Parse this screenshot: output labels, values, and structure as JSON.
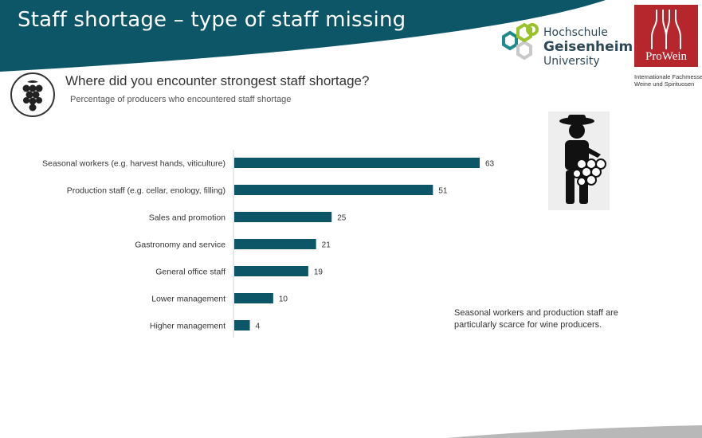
{
  "header": {
    "title": "Staff shortage – type of staff missing",
    "band_color": "#0d5667"
  },
  "logos": {
    "hochschule": {
      "line1": "Hochschule",
      "line2": "Geisenheim",
      "line3": "University"
    },
    "prowein": {
      "name": "ProWein",
      "sub_line1": "Internationale Fachmesse",
      "sub_line2": "Weine und Spirituosen",
      "color": "#b5272d"
    }
  },
  "question": "Where did you encounter strongest staff shortage?",
  "icons": {
    "grape": "grape-icon",
    "worker": "grape-picker-icon"
  },
  "chart_data": {
    "type": "bar",
    "orientation": "horizontal",
    "subtitle": "Percentage of producers who encountered staff shortage",
    "categories": [
      "Seasonal workers (e.g. harvest hands, viticulture)",
      "Production staff (e.g. cellar, enology, filling)",
      "Sales and promotion",
      "Gastronomy and service",
      "General office staff",
      "Lower management",
      "Higher management"
    ],
    "values": [
      63,
      51,
      25,
      21,
      19,
      10,
      4
    ],
    "xlim": [
      0,
      63
    ],
    "bar_color": "#0d5667",
    "data_labels": true,
    "grid": false
  },
  "note": {
    "line1": "Seasonal workers and production staff are",
    "line2": "particularly scarce for wine producers."
  }
}
